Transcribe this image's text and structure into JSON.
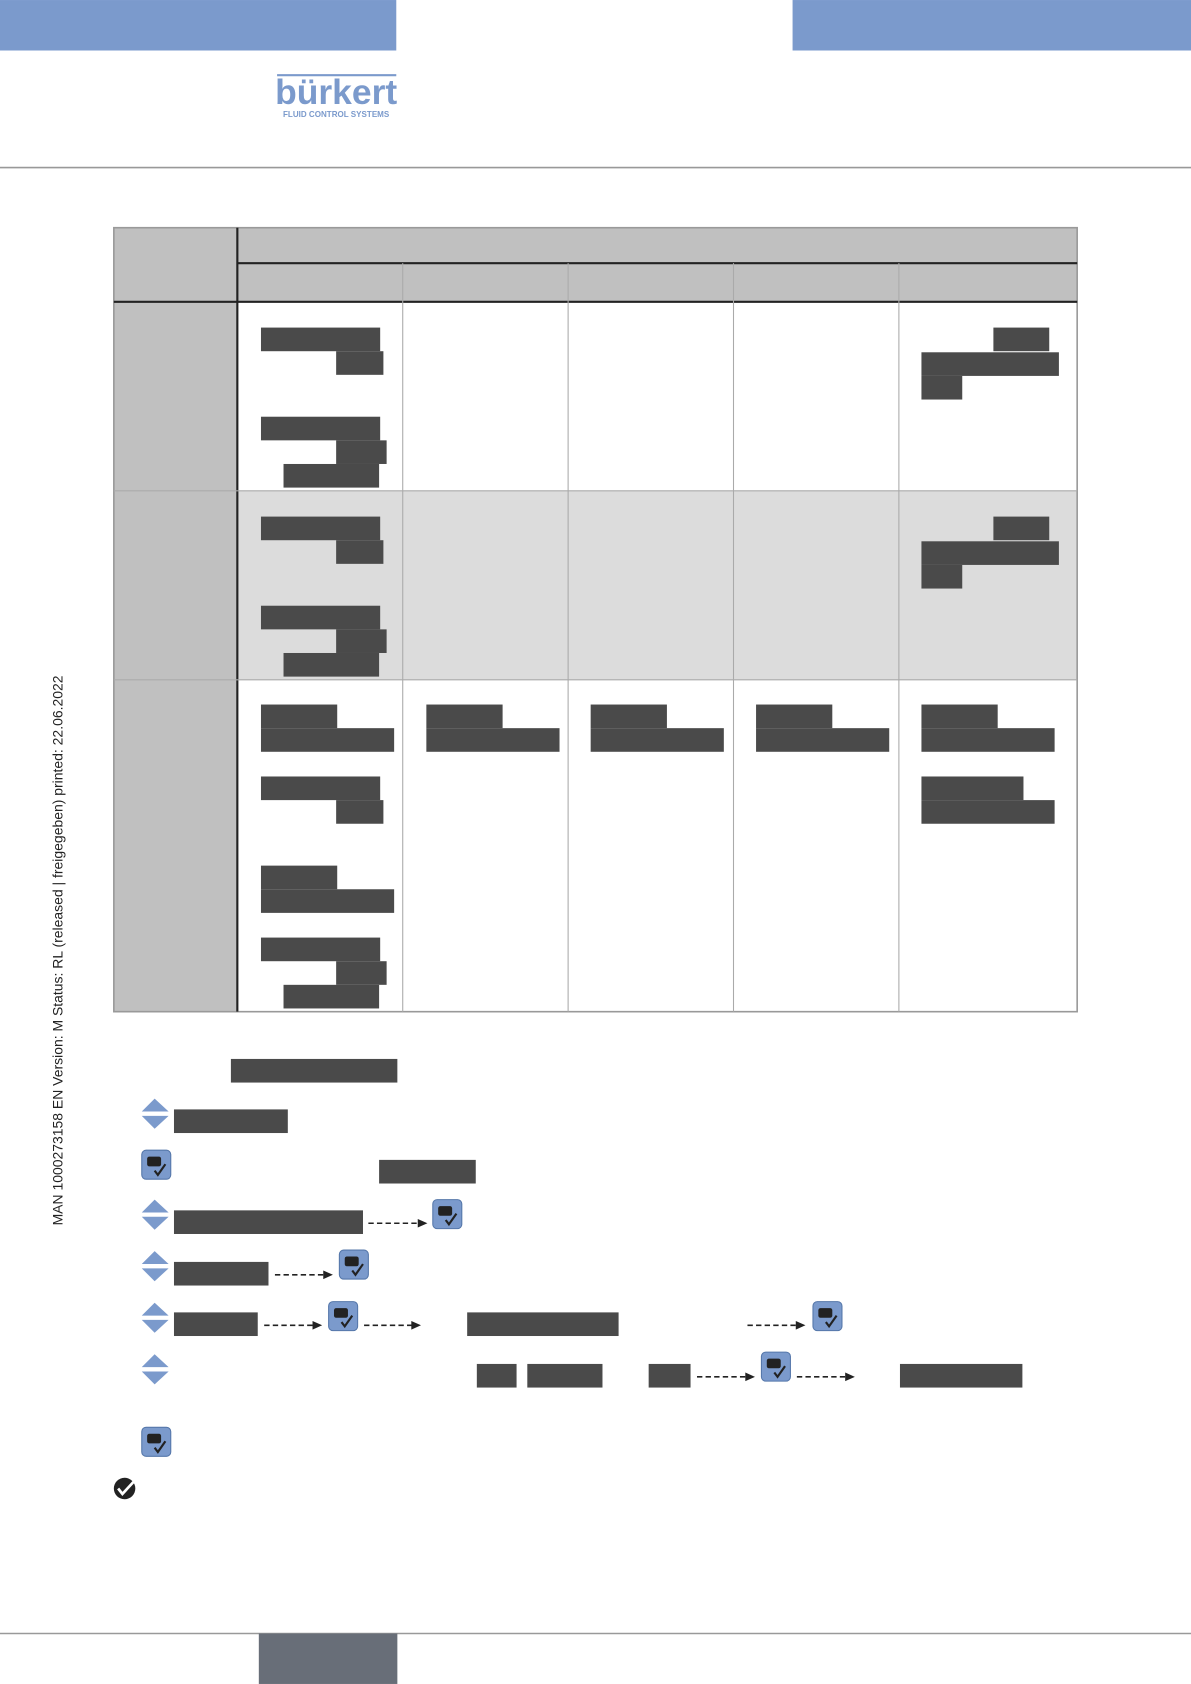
{
  "header": {
    "logo": "bürkert",
    "tagline": "FLUID CONTROL SYSTEMS"
  },
  "sidebar": {
    "text": "MAN  1000273158  EN  Version: M Status: RL (released | freigegeben)  printed: 22.06.2022"
  }
}
